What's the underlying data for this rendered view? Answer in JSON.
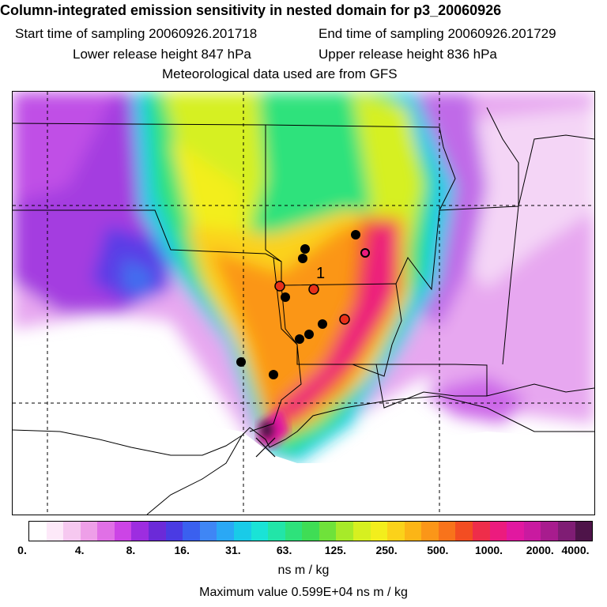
{
  "header": {
    "title": "Column-integrated emission sensitivity in nested domain for p3_20060926",
    "start_label": "Start time of sampling 20060926.201718",
    "end_label": "End time of sampling 20060926.201729",
    "lower_label": "Lower release height  847 hPa",
    "upper_label": "Upper release height  836 hPa",
    "met_label": "Meteorological data used are from GFS"
  },
  "map": {
    "release_label": "1",
    "receptor_markers": [
      {
        "type": "black"
      },
      {
        "type": "black"
      },
      {
        "type": "black"
      },
      {
        "type": "open-red"
      },
      {
        "type": "red"
      },
      {
        "type": "red"
      },
      {
        "type": "black"
      },
      {
        "type": "black"
      },
      {
        "type": "black"
      },
      {
        "type": "black"
      },
      {
        "type": "red"
      },
      {
        "type": "black"
      },
      {
        "type": "black"
      }
    ],
    "source_marker": "x-marker"
  },
  "colorbar": {
    "colors": [
      "#ffffff",
      "#fde9f9",
      "#f6c8f0",
      "#ee9fe8",
      "#e070e6",
      "#cc44e6",
      "#9d2de0",
      "#6b2ad8",
      "#4a3be3",
      "#3a60ef",
      "#3f86f5",
      "#2aa8f5",
      "#19cbe8",
      "#1ae3d6",
      "#22e5a8",
      "#2ee27b",
      "#3fdd55",
      "#6fe23a",
      "#a7ea29",
      "#d6f020",
      "#f3ee1c",
      "#fbd21a",
      "#fcb516",
      "#fb9618",
      "#f8731b",
      "#f34d22",
      "#ee2d4a",
      "#ec1b7e",
      "#e118a0",
      "#c91aa0",
      "#a81c8e",
      "#7f1d74",
      "#4e1449"
    ],
    "ticks": [
      "0.",
      "4.",
      "8.",
      "16.",
      "31.",
      "63.",
      "125.",
      "250.",
      "500.",
      "1000.",
      "2000.",
      "4000."
    ],
    "units": "ns m / kg",
    "max_value": "Maximum value  0.599E+04 ns m / kg"
  }
}
